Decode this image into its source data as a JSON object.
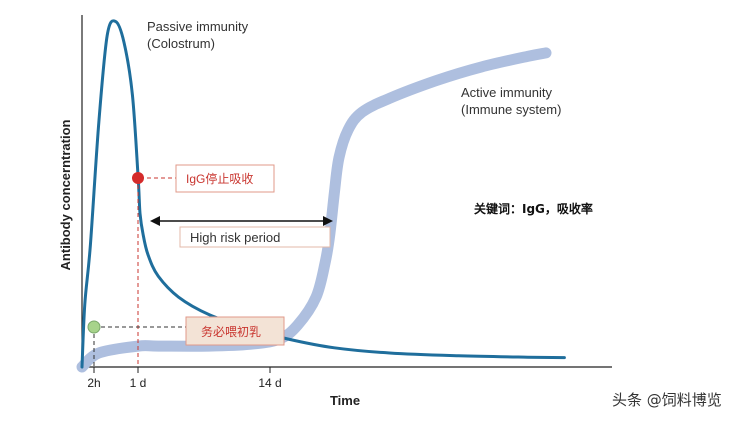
{
  "chart_data": {
    "type": "line",
    "ylabel": "Antibody concerntration",
    "xlabel": "Time",
    "x_ticks": [
      "2h",
      "1 d",
      "14 d"
    ],
    "series": [
      {
        "name": "Passive immunity (Colostrum)",
        "color": "#1f6e9c",
        "points": [
          [
            0,
            0.0
          ],
          [
            0.05,
            0.18
          ],
          [
            0.15,
            0.35
          ],
          [
            0.3,
            0.7
          ],
          [
            0.45,
            0.95
          ],
          [
            0.6,
            0.99
          ],
          [
            0.75,
            0.93
          ],
          [
            0.9,
            0.78
          ],
          [
            1.0,
            0.55
          ],
          [
            1.2,
            0.44
          ],
          [
            1.5,
            0.38
          ],
          [
            2,
            0.32
          ],
          [
            3,
            0.26
          ],
          [
            5,
            0.2
          ],
          [
            8,
            0.15
          ],
          [
            12,
            0.11
          ],
          [
            18,
            0.08
          ],
          [
            28,
            0.055
          ],
          [
            40,
            0.04
          ],
          [
            55,
            0.032
          ],
          [
            70,
            0.028
          ],
          [
            78,
            0.027
          ]
        ]
      },
      {
        "name": "Active immunity (Immune system)",
        "color": "#aebfdf",
        "points": [
          [
            0,
            0.0
          ],
          [
            0.3,
            0.04
          ],
          [
            1,
            0.06
          ],
          [
            3,
            0.06
          ],
          [
            8,
            0.06
          ],
          [
            12,
            0.065
          ],
          [
            16,
            0.08
          ],
          [
            20,
            0.12
          ],
          [
            24,
            0.2
          ],
          [
            26,
            0.3
          ],
          [
            27,
            0.38
          ],
          [
            28,
            0.5
          ],
          [
            29,
            0.6
          ],
          [
            31,
            0.68
          ],
          [
            34,
            0.73
          ],
          [
            40,
            0.77
          ],
          [
            50,
            0.82
          ],
          [
            60,
            0.86
          ],
          [
            70,
            0.89
          ],
          [
            74,
            0.9
          ]
        ]
      }
    ],
    "labels": {
      "passive_line1": "Passive immunity",
      "passive_line2": "(Colostrum)",
      "active_line1": "Active immunity",
      "active_line2": "(Immune system)"
    },
    "annotations": {
      "igg_stop": "IgG停止吸收",
      "high_risk": "High risk period",
      "colostrum_must": "务必喂初乳",
      "keywords": "关键词：IgG，吸收率"
    },
    "markers": [
      {
        "name": "IgG stop absorption",
        "x": 1.0,
        "y": 0.55,
        "color": "#d42b2b"
      },
      {
        "name": "feed colostrum",
        "x": 0.15,
        "y": 0.11,
        "color": "#a7d38b"
      }
    ]
  },
  "watermark": "头条 @饲料博览"
}
